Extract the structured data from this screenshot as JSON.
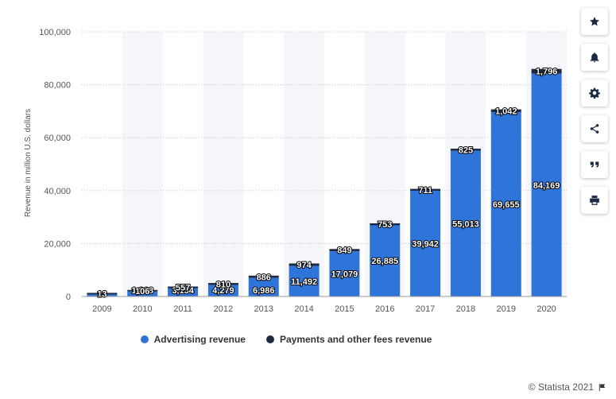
{
  "chart_data": {
    "type": "bar",
    "stacked": true,
    "categories": [
      "2009",
      "2010",
      "2011",
      "2012",
      "2013",
      "2014",
      "2015",
      "2016",
      "2017",
      "2018",
      "2019",
      "2020"
    ],
    "series": [
      {
        "name": "Advertising revenue",
        "color": "#2f74d8",
        "values": [
          764,
          1868,
          3154,
          4279,
          6986,
          11492,
          17079,
          26885,
          39942,
          55013,
          69655,
          84169
        ],
        "labels": [
          "",
          "1,868",
          "3,154",
          "4,279",
          "6,986",
          "11,492",
          "17,079",
          "26,885",
          "39,942",
          "55,013",
          "69,655",
          "84,169"
        ]
      },
      {
        "name": "Payments and other fees revenue",
        "color": "#1c2a44",
        "values": [
          13,
          106,
          557,
          810,
          886,
          974,
          849,
          753,
          711,
          825,
          1042,
          1796
        ],
        "labels": [
          "13",
          "106",
          "557",
          "810",
          "886",
          "974",
          "849",
          "753",
          "711",
          "825",
          "1,042",
          "1,796"
        ]
      }
    ],
    "ylabel": "Revenue in million U.S. dollars",
    "ylim": [
      0,
      100000
    ],
    "yticks": [
      "0",
      "20,000",
      "40,000",
      "60,000",
      "80,000",
      "100,000"
    ],
    "ytick_values": [
      0,
      20000,
      40000,
      60000,
      80000,
      100000
    ],
    "grid": true,
    "legend_position": "bottom"
  },
  "toolbar": {
    "icons": [
      "star-icon",
      "bell-icon",
      "gear-icon",
      "share-icon",
      "quote-icon",
      "print-icon"
    ]
  },
  "credit": {
    "text": "© Statista 2021",
    "icon": "flag-icon"
  }
}
